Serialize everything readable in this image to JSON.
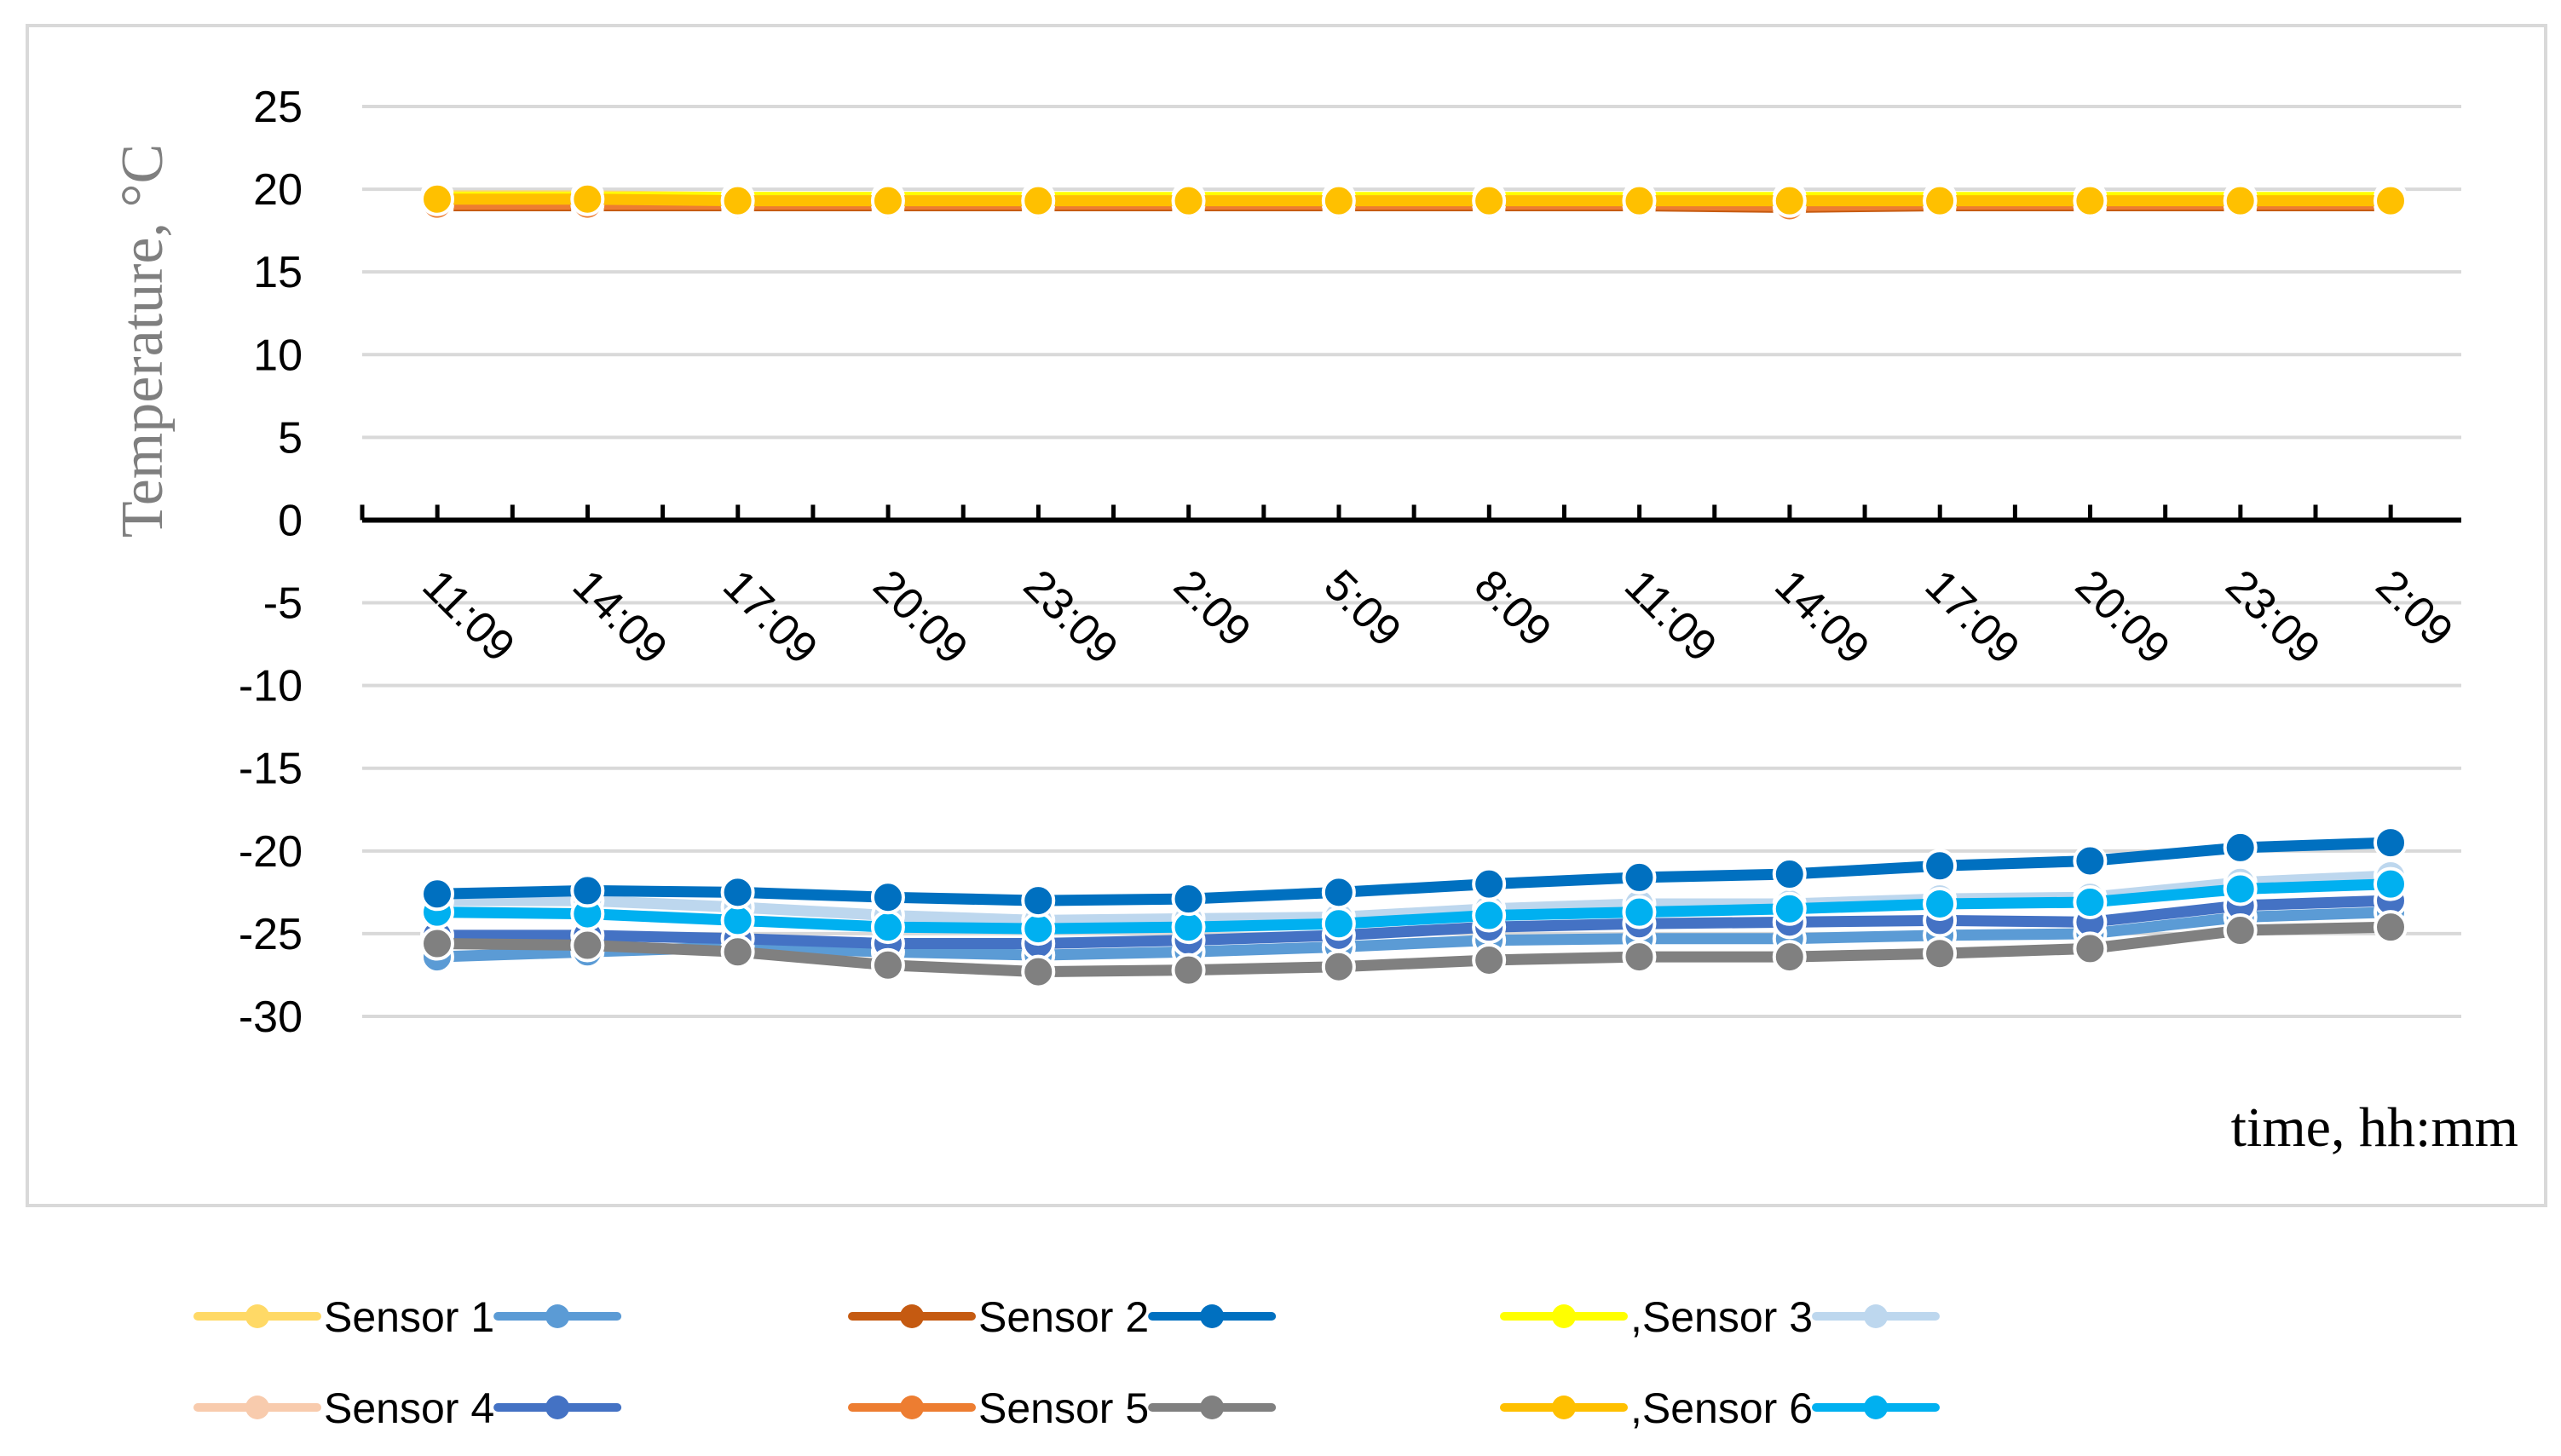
{
  "chart_data": {
    "type": "line",
    "ylabel": "Temperature, °C",
    "xlabel": "time, hh:mm",
    "categories": [
      "11:09",
      "14:09",
      "17:09",
      "20:09",
      "23:09",
      "2:09",
      "5:09",
      "8:09",
      "11:09",
      "14:09",
      "17:09",
      "20:09",
      "23:09",
      "2:09"
    ],
    "ylim": [
      -30,
      25
    ],
    "yticks": [
      25,
      20,
      15,
      10,
      5,
      0,
      -5,
      -10,
      -15,
      -20,
      -25,
      -30
    ],
    "grid": true,
    "legend_position": "bottom",
    "legend": [
      {
        "label": "Sensor 1",
        "left_color": "#ffd966",
        "right_color": "#5b9bd5"
      },
      {
        "label": "Sensor 2",
        "left_color": "#c55a11",
        "right_color": "#0070c0"
      },
      {
        "label": ",Sensor 3",
        "left_color": "#ffff00",
        "right_color": "#bdd7ee"
      },
      {
        "label": "Sensor 4",
        "left_color": "#f8cbad",
        "right_color": "#4472c4"
      },
      {
        "label": "Sensor 5",
        "left_color": "#ed7d31",
        "right_color": "#808080"
      },
      {
        "label": ",Sensor 6",
        "left_color": "#ffc000",
        "right_color": "#00b0f0"
      }
    ],
    "series": [
      {
        "color": "#ffd966",
        "values": [
          19.6,
          19.6,
          19.5,
          19.5,
          19.5,
          19.4,
          19.4,
          19.4,
          19.4,
          19.4,
          19.4,
          19.4,
          19.4,
          19.4
        ]
      },
      {
        "color": "#c55a11",
        "values": [
          19.0,
          19.0,
          19.0,
          19.0,
          19.0,
          19.0,
          19.0,
          19.0,
          19.0,
          18.9,
          19.0,
          19.0,
          19.0,
          19.0
        ]
      },
      {
        "color": "#ffff00",
        "values": [
          19.5,
          19.5,
          19.5,
          19.5,
          19.5,
          19.5,
          19.5,
          19.5,
          19.5,
          19.5,
          19.5,
          19.5,
          19.5,
          19.5
        ]
      },
      {
        "color": "#f8cbad",
        "values": [
          19.3,
          19.3,
          19.3,
          19.3,
          19.3,
          19.3,
          19.3,
          19.3,
          19.3,
          19.2,
          19.2,
          19.2,
          19.2,
          19.2
        ]
      },
      {
        "color": "#ed7d31",
        "values": [
          19.1,
          19.1,
          19.1,
          19.1,
          19.1,
          19.1,
          19.1,
          19.1,
          19.1,
          19.0,
          19.1,
          19.1,
          19.1,
          19.1
        ]
      },
      {
        "color": "#ffc000",
        "values": [
          19.4,
          19.4,
          19.3,
          19.3,
          19.3,
          19.3,
          19.3,
          19.3,
          19.3,
          19.3,
          19.3,
          19.3,
          19.3,
          19.3
        ]
      },
      {
        "color": "#5b9bd5",
        "values": [
          -26.4,
          -26.1,
          -25.8,
          -26.1,
          -26.3,
          -26.1,
          -25.8,
          -25.4,
          -25.3,
          -25.3,
          -25.1,
          -25.0,
          -24.0,
          -23.7
        ]
      },
      {
        "color": "#4472c4",
        "values": [
          -25.1,
          -25.1,
          -25.3,
          -25.6,
          -25.6,
          -25.4,
          -25.1,
          -24.6,
          -24.4,
          -24.3,
          -24.2,
          -24.3,
          -23.3,
          -23.0
        ]
      },
      {
        "color": "#808080",
        "values": [
          -25.6,
          -25.7,
          -26.1,
          -26.9,
          -27.3,
          -27.2,
          -27.0,
          -26.6,
          -26.4,
          -26.4,
          -26.2,
          -25.9,
          -24.8,
          -24.6
        ]
      },
      {
        "color": "#bdd7ee",
        "values": [
          -23.0,
          -23.0,
          -23.4,
          -23.9,
          -24.2,
          -24.1,
          -24.0,
          -23.5,
          -23.2,
          -23.2,
          -22.9,
          -22.8,
          -21.9,
          -21.5
        ]
      },
      {
        "color": "#00b0f0",
        "values": [
          -23.7,
          -23.8,
          -24.2,
          -24.6,
          -24.7,
          -24.6,
          -24.4,
          -23.9,
          -23.7,
          -23.5,
          -23.2,
          -23.1,
          -22.3,
          -22.0
        ]
      },
      {
        "color": "#0070c0",
        "values": [
          -22.6,
          -22.4,
          -22.5,
          -22.8,
          -23.0,
          -22.9,
          -22.5,
          -22.0,
          -21.6,
          -21.4,
          -20.9,
          -20.6,
          -19.8,
          -19.5
        ]
      }
    ]
  }
}
